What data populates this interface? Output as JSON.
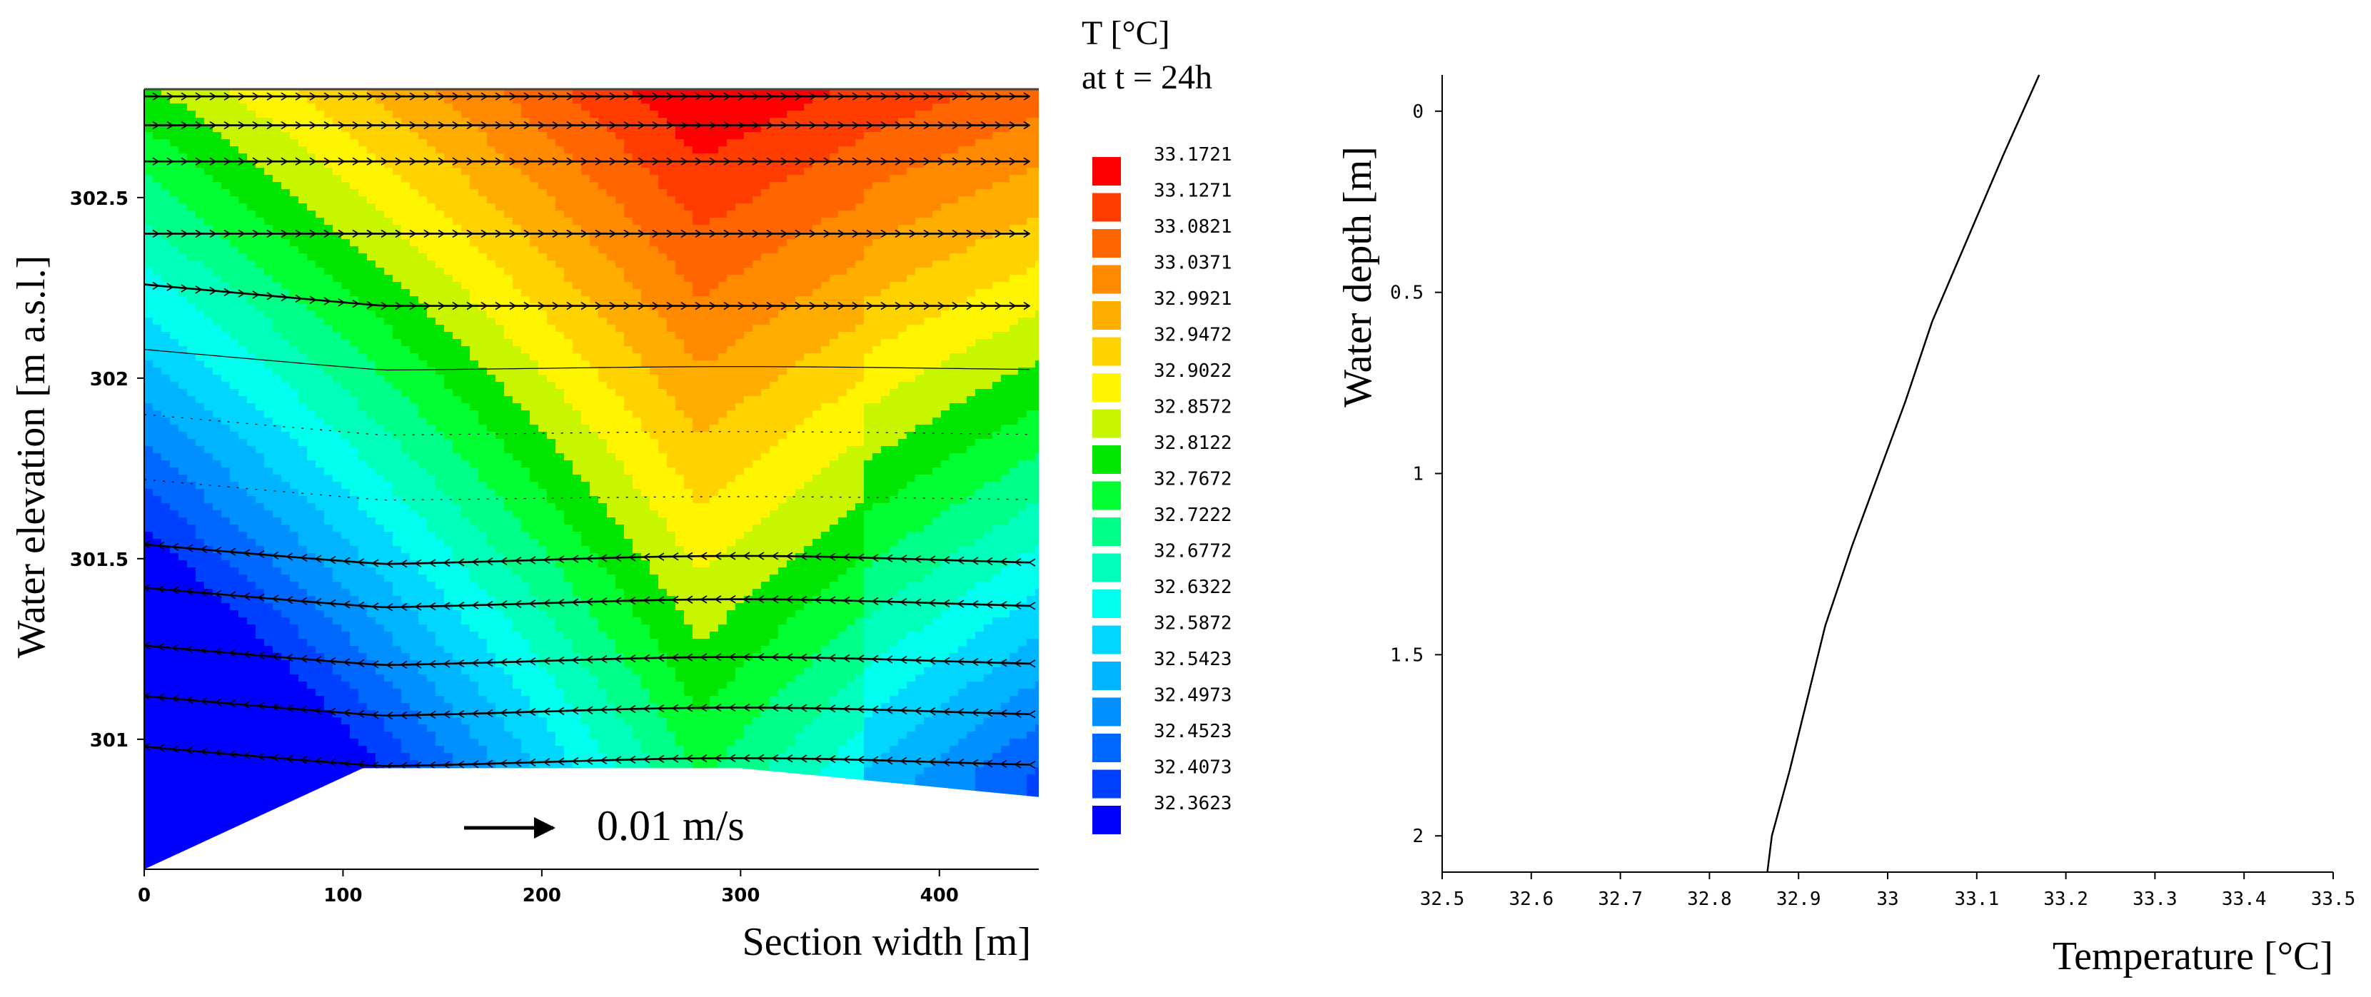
{
  "chart_data": [
    {
      "type": "heatmap",
      "title": "",
      "xlabel": "Section width [m]",
      "ylabel": "Water elevation [m a.s.l.]",
      "xlim": [
        0,
        450
      ],
      "ylim": [
        300.64,
        302.8
      ],
      "x_ticks": [
        0,
        100,
        200,
        300,
        400
      ],
      "y_ticks": [
        301,
        301.5,
        302,
        302.5
      ],
      "colorbar": {
        "title_line1": "T [°C]",
        "title_line2": "at t = 24h",
        "levels": [
          "33.1721",
          "33.1271",
          "33.0821",
          "33.0371",
          "32.9921",
          "32.9472",
          "32.9022",
          "32.8572",
          "32.8122",
          "32.7672",
          "32.7222",
          "32.6772",
          "32.6322",
          "32.5872",
          "32.5423",
          "32.4973",
          "32.4523",
          "32.4073",
          "32.3623"
        ],
        "colors": [
          "#ff0000",
          "#ff3d00",
          "#ff6600",
          "#ff8a00",
          "#ffae00",
          "#ffd200",
          "#fff500",
          "#c8f500",
          "#00e600",
          "#00ff33",
          "#00ff88",
          "#00ffbb",
          "#00ffee",
          "#00d6ff",
          "#00b4ff",
          "#0090ff",
          "#0068ff",
          "#0040ff",
          "#0000ff"
        ]
      },
      "temperature_field_note": "",
      "section_bottom": [
        [
          0,
          300.64
        ],
        [
          110,
          300.92
        ],
        [
          300,
          300.92
        ],
        [
          450,
          300.84
        ]
      ],
      "velocity_scale_label": "0.01 m/s",
      "velocity_layers_elevation": [
        302.78,
        302.7,
        302.6,
        302.4,
        302.2,
        302.02,
        301.84,
        301.66,
        301.48,
        301.36,
        301.2,
        301.06,
        300.92
      ]
    },
    {
      "type": "line",
      "title": "",
      "xlabel": "Temperature [°C]",
      "ylabel": "Water depth [m]",
      "xlim": [
        32.5,
        33.5
      ],
      "ylim": [
        2.1,
        -0.1
      ],
      "x_ticks": [
        "32.5",
        "32.6",
        "32.7",
        "32.8",
        "32.9",
        "33",
        "33.1",
        "33.2",
        "33.3",
        "33.4",
        "33.5"
      ],
      "y_ticks": [
        "0",
        "0.5",
        "1",
        "1.5",
        "2"
      ],
      "series": [
        {
          "x": [
            33.17,
            33.13,
            33.09,
            33.05,
            33.02,
            32.99,
            32.96,
            32.93,
            32.91,
            32.89,
            32.87,
            32.865
          ],
          "y": [
            -0.1,
            0.12,
            0.35,
            0.58,
            0.8,
            1.0,
            1.2,
            1.42,
            1.62,
            1.82,
            2.0,
            2.1
          ]
        }
      ]
    }
  ]
}
